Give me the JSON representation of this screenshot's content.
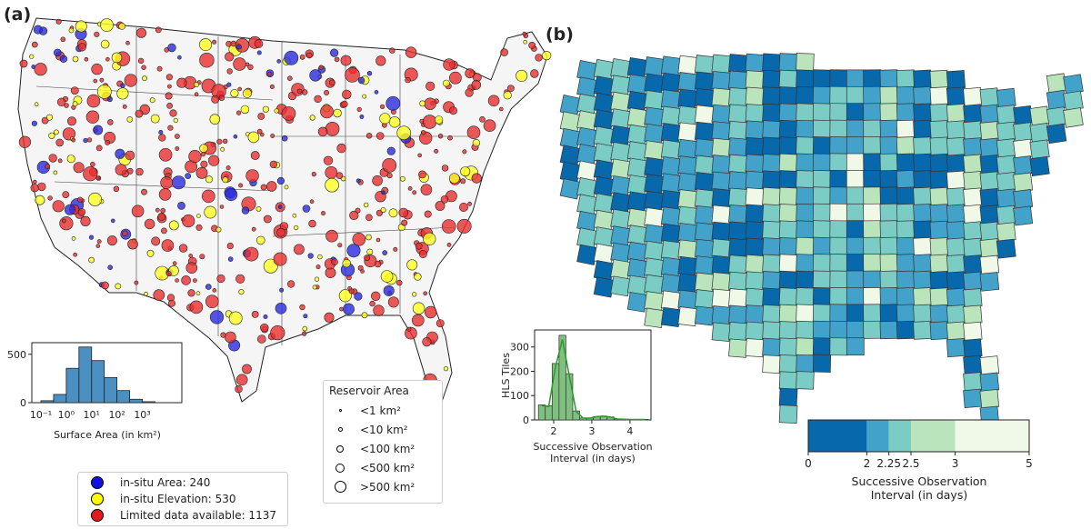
{
  "panel_a": {
    "label": "(a)",
    "legend": [
      {
        "label": "in-situ Area: 240",
        "color": "#1010e0"
      },
      {
        "label": "in-situ Elevation: 530",
        "color": "#ffff00"
      },
      {
        "label": "Limited data available: 1137",
        "color": "#e41a1c"
      }
    ],
    "size_legend": {
      "title": "Reservoir Area",
      "items": [
        "<1 km²",
        "<10 km²",
        "<100 km²",
        "<500 km²",
        ">500 km²"
      ]
    }
  },
  "panel_b": {
    "label": "(b)",
    "colorbar": {
      "boundaries": [
        0,
        2,
        2.25,
        2.5,
        3,
        5
      ],
      "tick_labels": [
        "0",
        "2",
        "2.25",
        "2.5",
        "3",
        "5"
      ],
      "colors": [
        "#0868ac",
        "#43a2ca",
        "#7bccc4",
        "#bae4bc",
        "#f0f9e8"
      ],
      "label_line1": "Successive Observation",
      "label_line2": "Interval (in days)"
    }
  },
  "chart_data": [
    {
      "type": "bar",
      "xlabel": "Surface Area (in km²)",
      "ylabel": "",
      "x_scale": "log",
      "bin_edges_log10": [
        -1,
        -0.5,
        0,
        0.5,
        1,
        1.5,
        2,
        2.5,
        3,
        3.5
      ],
      "values": [
        20,
        85,
        355,
        575,
        435,
        260,
        125,
        35,
        10
      ],
      "x_tick_labels": [
        "10⁻¹",
        "10⁰",
        "10¹",
        "10²",
        "10³"
      ],
      "y_ticks": [
        0,
        500
      ],
      "ylim": [
        0,
        620
      ],
      "color": "#4a90c2"
    },
    {
      "type": "bar",
      "xlabel_line1": "Successive Observation",
      "xlabel_line2": "Interval (in days)",
      "ylabel": "HLS Tiles",
      "bin_edges": [
        1.6,
        1.78,
        1.96,
        2.14,
        2.32,
        2.5,
        2.68,
        2.86,
        3.04,
        3.22,
        3.4,
        3.58,
        3.76,
        3.94,
        4.12,
        4.3,
        4.48
      ],
      "values": [
        62,
        58,
        232,
        348,
        190,
        37,
        8,
        8,
        14,
        16,
        12,
        4,
        3,
        2,
        2,
        2
      ],
      "x_ticks": [
        2,
        3,
        4
      ],
      "y_ticks": [
        0,
        100,
        200,
        300
      ],
      "xlim": [
        1.5,
        4.55
      ],
      "ylim": [
        0,
        370
      ],
      "kde": true,
      "color": "#7fbf7f",
      "kde_color": "#2a9a2a"
    }
  ]
}
